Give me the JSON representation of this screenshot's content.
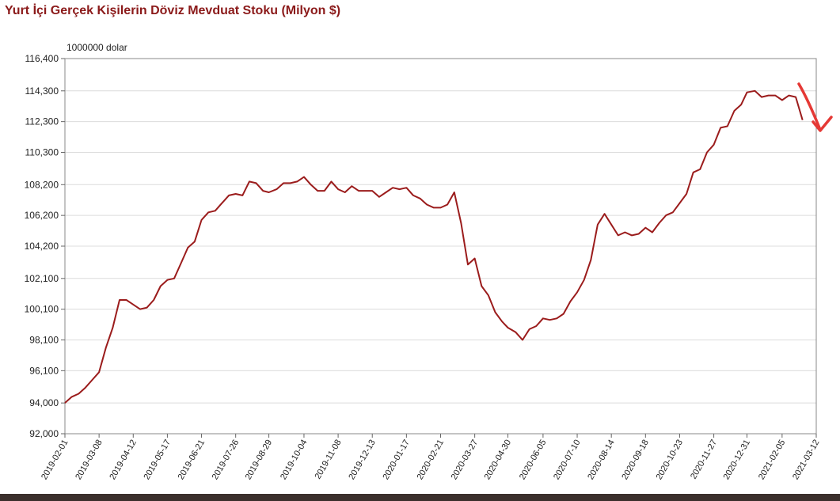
{
  "chart_data": {
    "type": "line",
    "title": "Yurt İçi Gerçek Kişilerin Döviz Mevduat Stoku (Milyon $)",
    "ylabel": "1000000 dolar",
    "xlabel": "",
    "ylim": [
      92000,
      116400
    ],
    "y_ticks": [
      "92,000",
      "94,000",
      "96,100",
      "98,100",
      "100,100",
      "102,100",
      "104,200",
      "106,200",
      "108,200",
      "110,300",
      "112,300",
      "114,300",
      "116,400"
    ],
    "y_tick_values": [
      92000,
      94000,
      96100,
      98100,
      100100,
      102100,
      104200,
      106200,
      108200,
      110300,
      112300,
      114300,
      116400
    ],
    "x_ticks": [
      "2019-02-01",
      "2019-03-08",
      "2019-04-12",
      "2019-05-17",
      "2019-06-21",
      "2019-07-26",
      "2019-08-29",
      "2019-10-04",
      "2019-11-08",
      "2019-12-13",
      "2020-01-17",
      "2020-02-21",
      "2020-03-27",
      "2020-04-30",
      "2020-06-05",
      "2020-07-10",
      "2020-08-14",
      "2020-09-18",
      "2020-10-23",
      "2020-11-27",
      "2020-12-31",
      "2021-02-05",
      "2021-03-12"
    ],
    "grid": true,
    "legend": "none",
    "series": [
      {
        "color": "#9b1c1c",
        "x": [
          "2019-02-01",
          "2019-02-08",
          "2019-02-15",
          "2019-02-22",
          "2019-03-01",
          "2019-03-08",
          "2019-03-15",
          "2019-03-22",
          "2019-03-29",
          "2019-04-05",
          "2019-04-12",
          "2019-04-19",
          "2019-04-26",
          "2019-05-03",
          "2019-05-10",
          "2019-05-17",
          "2019-05-24",
          "2019-05-31",
          "2019-06-07",
          "2019-06-14",
          "2019-06-21",
          "2019-06-28",
          "2019-07-05",
          "2019-07-12",
          "2019-07-19",
          "2019-07-26",
          "2019-08-02",
          "2019-08-09",
          "2019-08-16",
          "2019-08-23",
          "2019-08-29",
          "2019-09-06",
          "2019-09-13",
          "2019-09-20",
          "2019-09-27",
          "2019-10-04",
          "2019-10-11",
          "2019-10-18",
          "2019-10-25",
          "2019-11-01",
          "2019-11-08",
          "2019-11-15",
          "2019-11-22",
          "2019-11-29",
          "2019-12-06",
          "2019-12-13",
          "2019-12-20",
          "2019-12-27",
          "2020-01-03",
          "2020-01-10",
          "2020-01-17",
          "2020-01-24",
          "2020-01-31",
          "2020-02-07",
          "2020-02-14",
          "2020-02-21",
          "2020-02-28",
          "2020-03-06",
          "2020-03-13",
          "2020-03-20",
          "2020-03-27",
          "2020-04-03",
          "2020-04-10",
          "2020-04-17",
          "2020-04-24",
          "2020-04-30",
          "2020-05-08",
          "2020-05-15",
          "2020-05-22",
          "2020-05-29",
          "2020-06-05",
          "2020-06-12",
          "2020-06-19",
          "2020-06-26",
          "2020-07-03",
          "2020-07-10",
          "2020-07-17",
          "2020-07-24",
          "2020-07-31",
          "2020-08-07",
          "2020-08-14",
          "2020-08-21",
          "2020-08-28",
          "2020-09-04",
          "2020-09-11",
          "2020-09-18",
          "2020-09-25",
          "2020-10-02",
          "2020-10-09",
          "2020-10-16",
          "2020-10-23",
          "2020-10-30",
          "2020-11-06",
          "2020-11-13",
          "2020-11-20",
          "2020-11-27",
          "2020-12-04",
          "2020-12-11",
          "2020-12-18",
          "2020-12-25",
          "2020-12-31",
          "2021-01-08",
          "2021-01-15",
          "2021-01-22",
          "2021-01-29",
          "2021-02-05",
          "2021-02-12",
          "2021-02-19",
          "2021-02-26"
        ],
        "values": [
          94000,
          94400,
          94600,
          95000,
          95500,
          96000,
          97600,
          98900,
          100700,
          100700,
          100400,
          100100,
          100200,
          100700,
          101600,
          102000,
          102100,
          103100,
          104100,
          104500,
          105900,
          106400,
          106500,
          107000,
          107500,
          107600,
          107500,
          108400,
          108300,
          107800,
          107700,
          107900,
          108300,
          108300,
          108400,
          108700,
          108200,
          107800,
          107800,
          108400,
          107900,
          107700,
          108100,
          107800,
          107800,
          107800,
          107400,
          107700,
          108000,
          107900,
          108000,
          107500,
          107300,
          106900,
          106700,
          106700,
          106900,
          107700,
          105700,
          103000,
          103400,
          101600,
          101000,
          99900,
          99300,
          98900,
          98600,
          98100,
          98800,
          99000,
          99500,
          99400,
          99500,
          99800,
          100600,
          101200,
          102000,
          103300,
          105600,
          106300,
          105600,
          104900,
          105100,
          104900,
          105000,
          105400,
          105100,
          105700,
          106200,
          106400,
          107000,
          107600,
          109000,
          109200,
          110300,
          110800,
          111900,
          112000,
          113000,
          113400,
          114200,
          114300,
          113900,
          114000,
          114000,
          113700,
          114000,
          113900,
          112400
        ]
      }
    ]
  },
  "annotation": {
    "name": "red-hand-drawn-arrow",
    "color": "#e53935"
  }
}
